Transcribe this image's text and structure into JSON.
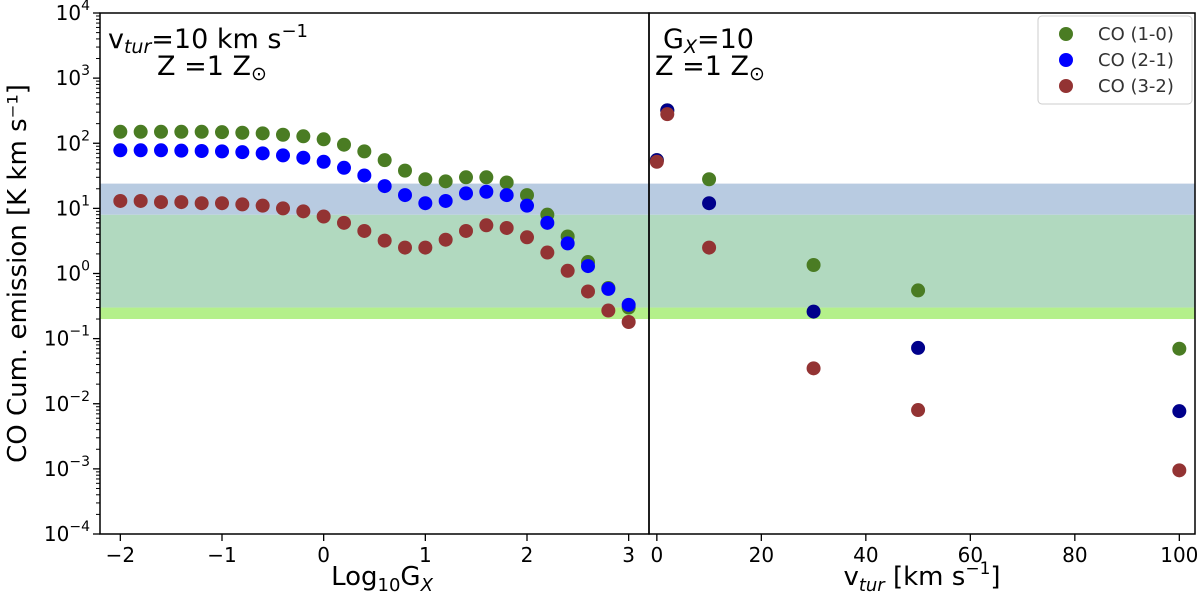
{
  "chart_data": {
    "type": "scatter",
    "ylabel": "CO Cum. emission [K km s⁻¹]",
    "yscale": "log",
    "ylim": [
      0.0001,
      10000
    ],
    "ytick_labels": [
      {
        "base": "10",
        "exp": "−4"
      },
      {
        "base": "10",
        "exp": "−3"
      },
      {
        "base": "10",
        "exp": "−2"
      },
      {
        "base": "10",
        "exp": "−1"
      },
      {
        "base": "10",
        "exp": "0"
      },
      {
        "base": "10",
        "exp": "1"
      },
      {
        "base": "10",
        "exp": "2"
      },
      {
        "base": "10",
        "exp": "3"
      },
      {
        "base": "10",
        "exp": "4"
      }
    ],
    "bands": [
      {
        "name": "light-green-band",
        "range": [
          0.2,
          0.3
        ],
        "color": "#b4f08a"
      },
      {
        "name": "green-band",
        "range": [
          0.3,
          8
        ],
        "color": "#b1d9bf"
      },
      {
        "name": "blue-band",
        "range": [
          8,
          24
        ],
        "color": "#b8cbe1"
      }
    ],
    "legend": {
      "location": "top-right",
      "entries": [
        {
          "label": "CO (1-0)",
          "color": "#4a7c23"
        },
        {
          "label": "CO (2-1)",
          "color": "#0000ff"
        },
        {
          "label": "CO (3-2)",
          "color": "#933333"
        }
      ]
    },
    "panels": [
      {
        "id": "left",
        "xlabel": {
          "main": "Log",
          "sub": "10",
          "after": "G",
          "sub2": "X"
        },
        "xlim": [
          -2.2,
          3.2
        ],
        "xticks": [
          -2,
          -1,
          0,
          1,
          2,
          3
        ],
        "xtick_labels": [
          "−2",
          "−1",
          "0",
          "1",
          "2",
          "3"
        ],
        "annotation": {
          "line1": {
            "a": "v",
            "sub": "tur",
            "b": "=10 km s",
            "sup": "−1"
          },
          "line2": {
            "a": "Z =1 Z",
            "sub": "⊙"
          }
        },
        "series": [
          {
            "name": "CO (1-0)",
            "color": "#4a7c23",
            "x": [
              -2.0,
              -1.8,
              -1.6,
              -1.4,
              -1.2,
              -1.0,
              -0.8,
              -0.6,
              -0.4,
              -0.2,
              0.0,
              0.2,
              0.4,
              0.6,
              0.8,
              1.0,
              1.2,
              1.4,
              1.6,
              1.8,
              2.0,
              2.2,
              2.4,
              2.6,
              2.8,
              3.0
            ],
            "y": [
              150,
              150,
              150,
              150,
              150,
              148,
              145,
              142,
              135,
              128,
              115,
              95,
              75,
              55,
              38,
              28,
              26,
              30,
              30,
              25,
              16,
              8,
              3.7,
              1.5,
              0.6,
              0.3
            ]
          },
          {
            "name": "CO (2-1)",
            "color": "#0000ff",
            "x": [
              -2.0,
              -1.8,
              -1.6,
              -1.4,
              -1.2,
              -1.0,
              -0.8,
              -0.6,
              -0.4,
              -0.2,
              0.0,
              0.2,
              0.4,
              0.6,
              0.8,
              1.0,
              1.2,
              1.4,
              1.6,
              1.8,
              2.0,
              2.2,
              2.4,
              2.6,
              2.8,
              3.0
            ],
            "y": [
              78,
              78,
              78,
              77,
              76,
              75,
              73,
              70,
              65,
              60,
              52,
              42,
              32,
              22,
              16,
              12,
              13,
              17,
              18,
              16,
              11,
              6,
              2.9,
              1.3,
              0.58,
              0.33
            ]
          },
          {
            "name": "CO (3-2)",
            "color": "#933333",
            "x": [
              -2.0,
              -1.8,
              -1.6,
              -1.4,
              -1.2,
              -1.0,
              -0.8,
              -0.6,
              -0.4,
              -0.2,
              0.0,
              0.2,
              0.4,
              0.6,
              0.8,
              1.0,
              1.2,
              1.4,
              1.6,
              1.8,
              2.0,
              2.2,
              2.4,
              2.6,
              2.8,
              3.0
            ],
            "y": [
              13,
              13,
              12.5,
              12.5,
              12,
              12,
              11.5,
              11,
              10,
              9,
              7.5,
              6,
              4.5,
              3.2,
              2.5,
              2.5,
              3.3,
              4.5,
              5.5,
              5,
              3.6,
              2.1,
              1.1,
              0.53,
              0.27,
              0.18
            ]
          }
        ]
      },
      {
        "id": "right",
        "xlabel": {
          "main": "v",
          "sub": "tur",
          "after": " [km s",
          "sup": "−1",
          "end": "]"
        },
        "xlim": [
          -1.5,
          103
        ],
        "xticks": [
          0,
          20,
          40,
          60,
          80,
          100
        ],
        "xtick_labels": [
          "0",
          "20",
          "40",
          "60",
          "80",
          "100"
        ],
        "annotation": {
          "line1": {
            "a": "G",
            "sub": "X",
            "b": "=10"
          },
          "line2": {
            "a": "Z =1 Z",
            "sub": "⊙"
          }
        },
        "series": [
          {
            "name": "CO (1-0)",
            "color": "#4a7c23",
            "x": [
              0,
              2,
              10,
              30,
              50,
              100
            ],
            "y": [
              55,
              320,
              28,
              1.35,
              0.55,
              0.07
            ]
          },
          {
            "name": "CO (2-1)",
            "color": "#00008b",
            "x": [
              0,
              2,
              10,
              30,
              50,
              100
            ],
            "y": [
              55,
              320,
              12,
              0.26,
              0.072,
              0.0077
            ]
          },
          {
            "name": "CO (3-2)",
            "color": "#933333",
            "x": [
              0,
              2,
              10,
              30,
              50,
              100
            ],
            "y": [
              52,
              280,
              2.5,
              0.035,
              0.008,
              0.00095
            ]
          }
        ]
      }
    ]
  }
}
